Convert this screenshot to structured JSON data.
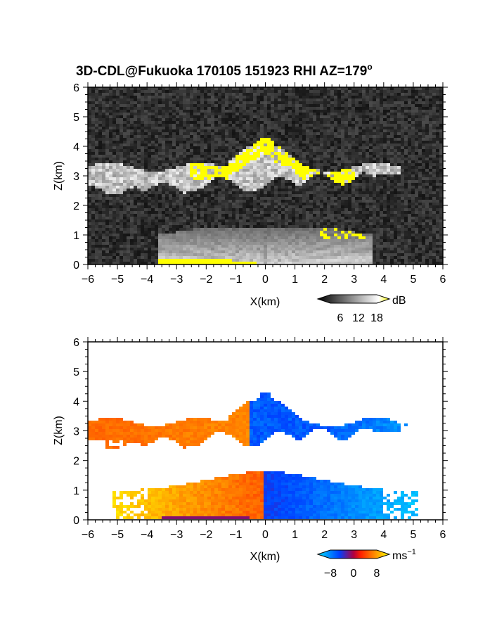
{
  "chart_data": [
    {
      "type": "heatmap",
      "title": "3D-CDL@Fukuoka 170105 151923 RHI AZ=179",
      "title_superscript": "o",
      "xlabel": "X(km)",
      "ylabel": "Z(km)",
      "xlim": [
        -6,
        6
      ],
      "ylim": [
        0,
        6
      ],
      "x_ticks": [
        "−6",
        "−5",
        "−4",
        "−3",
        "−2",
        "−1",
        "0",
        "1",
        "2",
        "3",
        "4",
        "5",
        "6"
      ],
      "y_ticks": [
        "0",
        "1",
        "2",
        "3",
        "4",
        "5",
        "6"
      ],
      "colorbar": {
        "unit": "dB",
        "ticks": [
          "6",
          "12",
          "18"
        ],
        "range": [
          0,
          20
        ],
        "colors": [
          "#000000",
          "#ffffff",
          "#ffff00"
        ]
      },
      "features": [
        {
          "kind": "cloud",
          "x": [
            -6,
            5.5
          ],
          "z": [
            2.2,
            4.3
          ],
          "value": 20
        },
        {
          "kind": "boundary-layer echo",
          "x": [
            -3.5,
            3.5
          ],
          "z": [
            0,
            1.2
          ],
          "value": 14
        }
      ]
    },
    {
      "type": "heatmap",
      "xlabel": "X(km)",
      "ylabel": "Z(km)",
      "xlim": [
        -6,
        6
      ],
      "ylim": [
        0,
        6
      ],
      "x_ticks": [
        "−6",
        "−5",
        "−4",
        "−3",
        "−2",
        "−1",
        "0",
        "1",
        "2",
        "3",
        "4",
        "5",
        "6"
      ],
      "y_ticks": [
        "0",
        "1",
        "2",
        "3",
        "4",
        "5",
        "6"
      ],
      "colorbar": {
        "unit": "ms",
        "unit_superscript": "−1",
        "ticks": [
          "−8",
          "0",
          "8"
        ],
        "range": [
          -10,
          10
        ],
        "colors": [
          "#00e0ff",
          "#0040ff",
          "#ff2000",
          "#ffff00"
        ]
      },
      "features": [
        {
          "kind": "cloud velocity",
          "x": [
            -6,
            5.3
          ],
          "z": [
            2.3,
            4.4
          ],
          "value_left": 5,
          "value_right": -6
        },
        {
          "kind": "boundary-layer velocity",
          "x": [
            -5.2,
            5.5
          ],
          "z": [
            0,
            1.7
          ],
          "value_left": 7,
          "value_right": -7
        }
      ]
    }
  ]
}
